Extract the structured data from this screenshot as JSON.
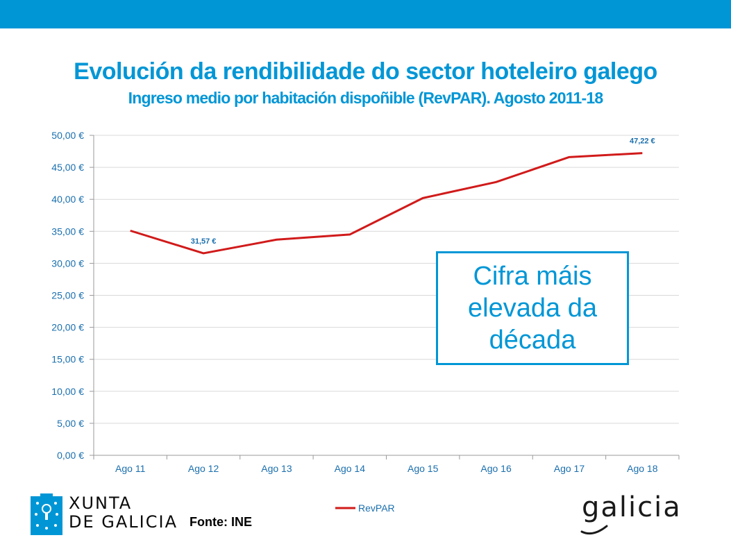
{
  "header": {
    "title": "Evolución da rendibilidade do sector hoteleiro galego",
    "subtitle": "Ingreso medio por habitación dispoñible (RevPAR). Agosto 2011-18"
  },
  "chart_data": {
    "type": "line",
    "title": "Evolución da rendibilidade do sector hoteleiro galego",
    "subtitle": "Ingreso medio por habitación dispoñible (RevPAR). Agosto 2011-18",
    "categories": [
      "Ago 11",
      "Ago 12",
      "Ago 13",
      "Ago 14",
      "Ago 15",
      "Ago 16",
      "Ago 17",
      "Ago 18"
    ],
    "series": [
      {
        "name": "RevPAR",
        "values": [
          35.1,
          31.57,
          33.7,
          34.5,
          40.2,
          42.7,
          46.6,
          47.22
        ],
        "color": "#d11a1a"
      }
    ],
    "ylim": [
      0,
      50
    ],
    "yticks": [
      "0,00 €",
      "5,00 €",
      "10,00 €",
      "15,00 €",
      "20,00 €",
      "25,00 €",
      "30,00 €",
      "35,00 €",
      "40,00 €",
      "45,00 €",
      "50,00 €"
    ],
    "data_labels": [
      {
        "index": 1,
        "text": "31,57 €"
      },
      {
        "index": 7,
        "text": "47,22 €"
      }
    ],
    "grid": true,
    "legend": "bottom",
    "xlabel": "",
    "ylabel": ""
  },
  "callout": {
    "text": "Cifra máis elevada da década"
  },
  "footer": {
    "source": "Fonte: INE",
    "xunta_line1": "XUNTA",
    "xunta_line2": "DE GALICIA",
    "galicia_logo": "galicia"
  },
  "colors": {
    "brand_blue": "#0096d6",
    "axis_text": "#1a6fae",
    "series_line": "#d11a1a",
    "grid": "#d9d9d9"
  }
}
